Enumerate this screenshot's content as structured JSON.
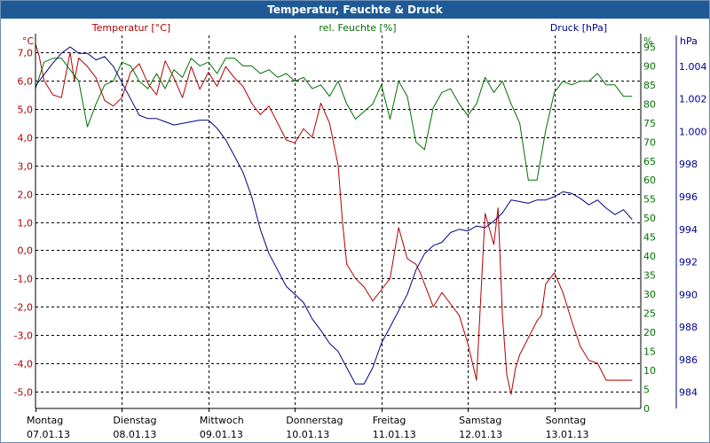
{
  "window": {
    "title": "Temperatur, Feuchte & Druck"
  },
  "colors": {
    "temperature": "#b00000",
    "humidity": "#007000",
    "pressure": "#00008b",
    "grid": "#000000",
    "title_bar": "#1f5a97"
  },
  "chart_data": {
    "type": "line",
    "title": "Temperatur, Feuchte & Druck",
    "grid": true,
    "x_range": [
      0,
      7
    ],
    "x_ticks": [
      {
        "day": "Montag",
        "date": "07.01.13"
      },
      {
        "day": "Dienstag",
        "date": "08.01.13"
      },
      {
        "day": "Mittwoch",
        "date": "09.01.13"
      },
      {
        "day": "Donnerstag",
        "date": "10.01.13"
      },
      {
        "day": "Freitag",
        "date": "11.01.13"
      },
      {
        "day": "Samstag",
        "date": "12.01.13"
      },
      {
        "day": "Sonntag",
        "date": "13.01.13"
      }
    ],
    "axes": {
      "temperature": {
        "label": "Temperatur [°C]",
        "unit": "°C",
        "range": [
          -5.6,
          7.6
        ],
        "ticks": [
          "7,0",
          "6,0",
          "5,0",
          "4,0",
          "3,0",
          "2,0",
          "1,0",
          "0,0",
          "-1,0",
          "-2,0",
          "-3,0",
          "-4,0",
          "-5,0"
        ],
        "tick_values": [
          7,
          6,
          5,
          4,
          3,
          2,
          1,
          0,
          -1,
          -2,
          -3,
          -4,
          -5
        ]
      },
      "humidity": {
        "label": "rel. Feuchte [%]",
        "unit": "%",
        "range": [
          0,
          98
        ],
        "ticks": [
          "95",
          "90",
          "85",
          "80",
          "75",
          "70",
          "65",
          "60",
          "55",
          "50",
          "45",
          "40",
          "35",
          "30",
          "25",
          "20",
          "15",
          "10",
          "5",
          "0"
        ],
        "tick_values": [
          95,
          90,
          85,
          80,
          75,
          70,
          65,
          60,
          55,
          50,
          45,
          40,
          35,
          30,
          25,
          20,
          15,
          10,
          5,
          0
        ]
      },
      "pressure": {
        "label": "Druck [hPa]",
        "unit": "hPa",
        "range": [
          983.0,
          1005.9
        ],
        "ticks": [
          "1.004",
          "1.002",
          "1.000",
          "998",
          "996",
          "994",
          "992",
          "990",
          "988",
          "986",
          "984"
        ],
        "tick_values": [
          1004,
          1002,
          1000,
          998,
          996,
          994,
          992,
          990,
          988,
          986,
          984
        ]
      }
    },
    "series": [
      {
        "name": "Temperatur [°C]",
        "axis": "temperature",
        "x": [
          0.0,
          0.04,
          0.1,
          0.2,
          0.3,
          0.4,
          0.45,
          0.5,
          0.6,
          0.7,
          0.8,
          0.9,
          1.0,
          1.1,
          1.2,
          1.3,
          1.4,
          1.5,
          1.6,
          1.7,
          1.8,
          1.9,
          2.0,
          2.1,
          2.2,
          2.3,
          2.4,
          2.5,
          2.6,
          2.7,
          2.8,
          2.9,
          3.0,
          3.1,
          3.2,
          3.3,
          3.4,
          3.5,
          3.55,
          3.6,
          3.7,
          3.8,
          3.9,
          4.0,
          4.1,
          4.2,
          4.3,
          4.4,
          4.45,
          4.5,
          4.6,
          4.7,
          4.8,
          4.9,
          5.0,
          5.1,
          5.2,
          5.3,
          5.35,
          5.4,
          5.45,
          5.5,
          5.55,
          5.6,
          5.7,
          5.8,
          5.85,
          5.9,
          6.0,
          6.1,
          6.2,
          6.3,
          6.4,
          6.5,
          6.6,
          6.7,
          6.8,
          6.9
        ],
        "values": [
          7.3,
          6.9,
          6.0,
          5.5,
          5.4,
          7.0,
          6.0,
          6.8,
          6.5,
          6.1,
          5.3,
          5.1,
          5.4,
          6.3,
          6.6,
          5.9,
          5.5,
          6.7,
          6.1,
          5.4,
          6.5,
          5.7,
          6.3,
          5.8,
          6.5,
          6.1,
          5.8,
          5.2,
          4.8,
          5.1,
          4.5,
          3.9,
          3.8,
          4.3,
          4.0,
          5.2,
          4.5,
          3.0,
          1.0,
          -0.5,
          -1.0,
          -1.3,
          -1.8,
          -1.4,
          -1.0,
          0.8,
          -0.3,
          -0.5,
          -0.8,
          -1.2,
          -2.0,
          -1.5,
          -1.9,
          -2.3,
          -3.3,
          -4.6,
          1.3,
          0.2,
          1.5,
          -2.3,
          -4.4,
          -5.1,
          -4.2,
          -3.7,
          -3.1,
          -2.5,
          -2.3,
          -1.2,
          -0.8,
          -1.5,
          -2.5,
          -3.4,
          -3.9,
          -4.0,
          -4.6,
          -4.6,
          -4.6,
          -4.6
        ]
      },
      {
        "name": "rel. Feuchte [%]",
        "axis": "humidity",
        "x": [
          0.0,
          0.1,
          0.2,
          0.3,
          0.4,
          0.5,
          0.6,
          0.7,
          0.8,
          0.9,
          1.0,
          1.1,
          1.2,
          1.3,
          1.4,
          1.5,
          1.6,
          1.7,
          1.8,
          1.9,
          2.0,
          2.1,
          2.2,
          2.3,
          2.4,
          2.5,
          2.6,
          2.7,
          2.8,
          2.9,
          3.0,
          3.1,
          3.2,
          3.3,
          3.4,
          3.5,
          3.6,
          3.7,
          3.8,
          3.9,
          4.0,
          4.1,
          4.2,
          4.3,
          4.4,
          4.5,
          4.6,
          4.7,
          4.8,
          4.9,
          5.0,
          5.1,
          5.2,
          5.3,
          5.4,
          5.5,
          5.6,
          5.7,
          5.8,
          5.9,
          6.0,
          6.1,
          6.2,
          6.3,
          6.4,
          6.5,
          6.6,
          6.7,
          6.8,
          6.9
        ],
        "values": [
          84,
          91,
          92,
          92,
          89,
          86,
          74,
          80,
          85,
          86,
          91,
          90,
          86,
          84,
          88,
          84,
          89,
          87,
          92,
          90,
          91,
          88,
          92,
          92,
          90,
          90,
          88,
          89,
          87,
          88,
          86,
          87,
          84,
          85,
          82,
          86,
          80,
          76,
          78,
          80,
          85,
          76,
          86,
          82,
          70,
          68,
          79,
          83,
          84,
          80,
          77,
          80,
          87,
          83,
          86,
          80,
          75,
          60,
          60,
          73,
          83,
          86,
          85,
          86,
          86,
          88,
          85,
          85,
          82,
          82
        ]
      },
      {
        "name": "Druck [hPa]",
        "axis": "pressure",
        "x": [
          0.0,
          0.1,
          0.2,
          0.3,
          0.4,
          0.5,
          0.6,
          0.7,
          0.8,
          0.9,
          1.0,
          1.1,
          1.2,
          1.3,
          1.4,
          1.5,
          1.6,
          1.7,
          1.8,
          1.9,
          2.0,
          2.1,
          2.2,
          2.3,
          2.4,
          2.5,
          2.6,
          2.7,
          2.8,
          2.9,
          3.0,
          3.1,
          3.2,
          3.3,
          3.4,
          3.5,
          3.6,
          3.7,
          3.8,
          3.9,
          4.0,
          4.1,
          4.2,
          4.3,
          4.4,
          4.5,
          4.6,
          4.7,
          4.8,
          4.9,
          5.0,
          5.1,
          5.2,
          5.3,
          5.4,
          5.5,
          5.6,
          5.7,
          5.8,
          5.9,
          6.0,
          6.1,
          6.2,
          6.3,
          6.4,
          6.5,
          6.6,
          6.7,
          6.8,
          6.9
        ],
        "values": [
          1002.8,
          1003.5,
          1004.2,
          1004.8,
          1005.2,
          1004.8,
          1004.8,
          1004.4,
          1004.6,
          1004.0,
          1003.0,
          1002.0,
          1001.0,
          1000.8,
          1000.8,
          1000.6,
          1000.4,
          1000.5,
          1000.6,
          1000.7,
          1000.7,
          1000.2,
          999.5,
          998.5,
          997.5,
          996.0,
          994.0,
          992.5,
          991.5,
          990.5,
          990.0,
          989.5,
          988.5,
          987.8,
          987.0,
          986.5,
          985.5,
          984.5,
          984.5,
          985.5,
          987.0,
          988.0,
          989.0,
          990.0,
          991.5,
          992.5,
          993.0,
          993.2,
          993.8,
          994.0,
          993.9,
          994.2,
          994.1,
          994.5,
          995.0,
          995.8,
          995.7,
          995.6,
          995.8,
          995.8,
          996.0,
          996.3,
          996.2,
          995.9,
          995.5,
          995.8,
          995.3,
          994.9,
          995.2,
          994.6
        ]
      }
    ]
  }
}
